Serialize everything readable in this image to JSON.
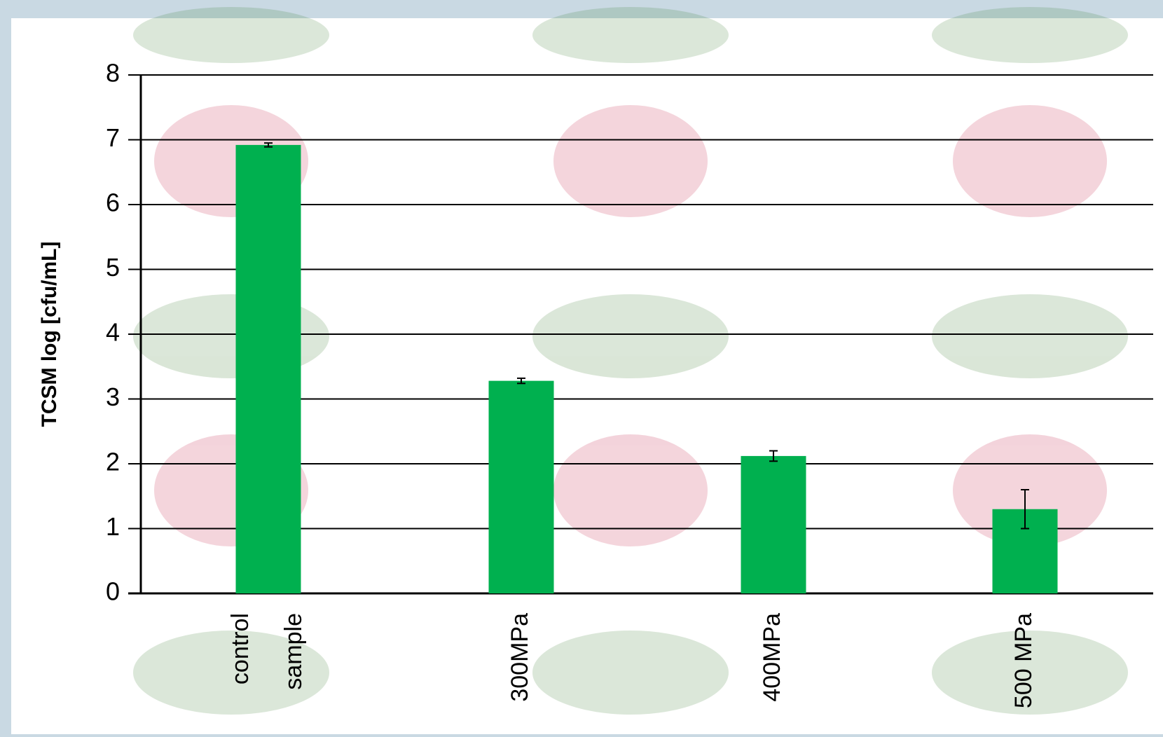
{
  "chart_data": {
    "type": "bar",
    "y_label": "TCSM log [cfu/mL]",
    "categories": [
      "control sample",
      "300MPa",
      "400MPa",
      "500 MPa"
    ],
    "values": [
      6.92,
      3.28,
      2.12,
      1.3
    ],
    "errors": [
      0.03,
      0.04,
      0.08,
      0.3
    ],
    "color": "#00b04f",
    "ylim": [
      0,
      8
    ],
    "yticks": [
      0,
      1,
      2,
      3,
      4,
      5,
      6,
      7,
      8
    ],
    "grid": true
  }
}
